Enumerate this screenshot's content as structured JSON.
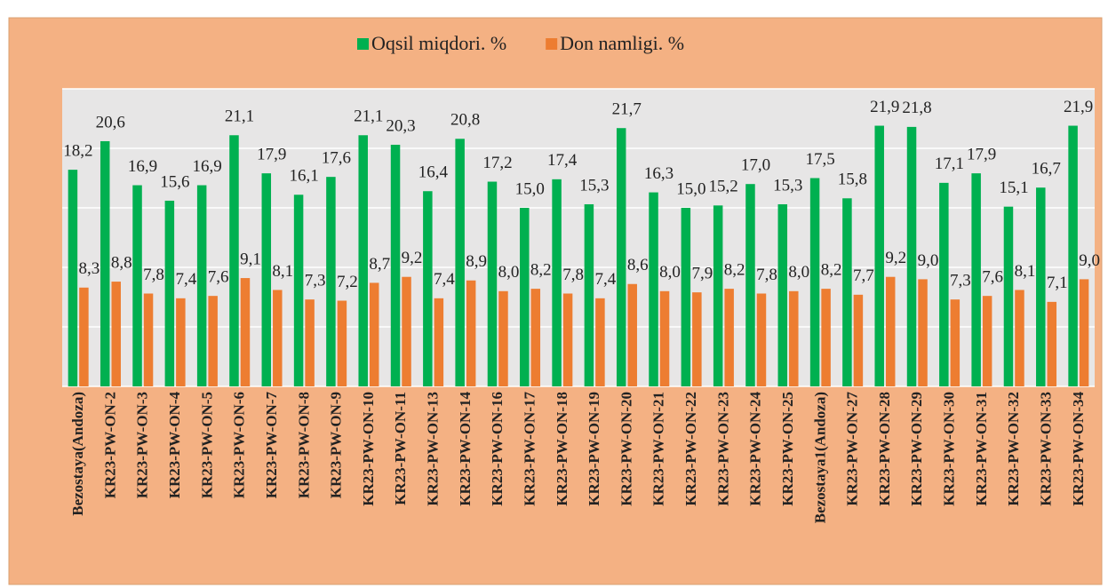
{
  "chart_data": {
    "type": "bar",
    "categories": [
      "Bezostaya(Andoza)",
      "KR23-PW-ON-2",
      "KR23-PW-ON-3",
      "KR23-PW-ON-4",
      "KR23-PW-ON-5",
      "KR23-PW-ON-6",
      "KR23-PW-ON-7",
      "KR23-PW-ON-8",
      "KR23-PW-ON-9",
      "KR23-PW-ON-10",
      "KR23-PW-ON-11",
      "KR23-PW-ON-13",
      "KR23-PW-ON-14",
      "KR23-PW-ON-16",
      "KR23-PW-ON-17",
      "KR23-PW-ON-18",
      "KR23-PW-ON-19",
      "KR23-PW-ON-20",
      "KR23-PW-ON-21",
      "KR23-PW-ON-22",
      "KR23-PW-ON-23",
      "KR23-PW-ON-24",
      "KR23-PW-ON-25",
      "Bezostaya1(Andoza)",
      "KR23-PW-ON-27",
      "KR23-PW-ON-28",
      "KR23-PW-ON-29",
      "KR23-PW-ON-30",
      "KR23-PW-ON-31",
      "KR23-PW-ON-32",
      "KR23-PW-ON-33",
      "KR23-PW-ON-34"
    ],
    "series": [
      {
        "name": "Oqsil miqdori. %",
        "color": "#00b050",
        "values": [
          18.2,
          20.6,
          16.9,
          15.6,
          16.9,
          21.1,
          17.9,
          16.1,
          17.6,
          21.1,
          20.3,
          16.4,
          20.8,
          17.2,
          15.0,
          17.4,
          15.3,
          21.7,
          16.3,
          15.0,
          15.2,
          17.0,
          15.3,
          17.5,
          15.8,
          21.9,
          21.8,
          17.1,
          17.9,
          15.1,
          16.7,
          21.9
        ],
        "value_labels": [
          "18,2",
          "20,6",
          "16,9",
          "15,6",
          "16,9",
          "21,1",
          "17,9",
          "16,1",
          "17,6",
          "21,1",
          "20,3",
          "16,4",
          "20,8",
          "17,2",
          "15,0",
          "17,4",
          "15,3",
          "21,7",
          "16,3",
          "15,0",
          "15,2",
          "17,0",
          "15,3",
          "17,5",
          "15,8",
          "21,9",
          "21,8",
          "17,1",
          "17,9",
          "15,1",
          "16,7",
          "21,9"
        ]
      },
      {
        "name": "Don namligi. %",
        "color": "#ed7d31",
        "values": [
          8.3,
          8.8,
          7.8,
          7.4,
          7.6,
          9.1,
          8.1,
          7.3,
          7.2,
          8.7,
          9.2,
          7.4,
          8.9,
          8.0,
          8.2,
          7.8,
          7.4,
          8.6,
          8.0,
          7.9,
          8.2,
          7.8,
          8.0,
          8.2,
          7.7,
          9.2,
          9.0,
          7.3,
          7.6,
          8.1,
          7.1,
          9.0
        ],
        "value_labels": [
          "8,3",
          "8,8",
          "7,8",
          "7,4",
          "7,6",
          "9,1",
          "8,1",
          "7,3",
          "7,2",
          "8,7",
          "9,2",
          "7,4",
          "8,9",
          "8,0",
          "8,2",
          "7,8",
          "7,4",
          "8,6",
          "8,0",
          "7,9",
          "8,2",
          "7,8",
          "8,0",
          "8,2",
          "7,7",
          "9,2",
          "9,0",
          "7,3",
          "7,6",
          "8,1",
          "7,1",
          "9,0"
        ]
      }
    ],
    "ylim": [
      0,
      25
    ],
    "yticks": [
      0,
      5,
      10,
      15,
      20,
      25
    ],
    "grid": true,
    "legend": "top"
  }
}
